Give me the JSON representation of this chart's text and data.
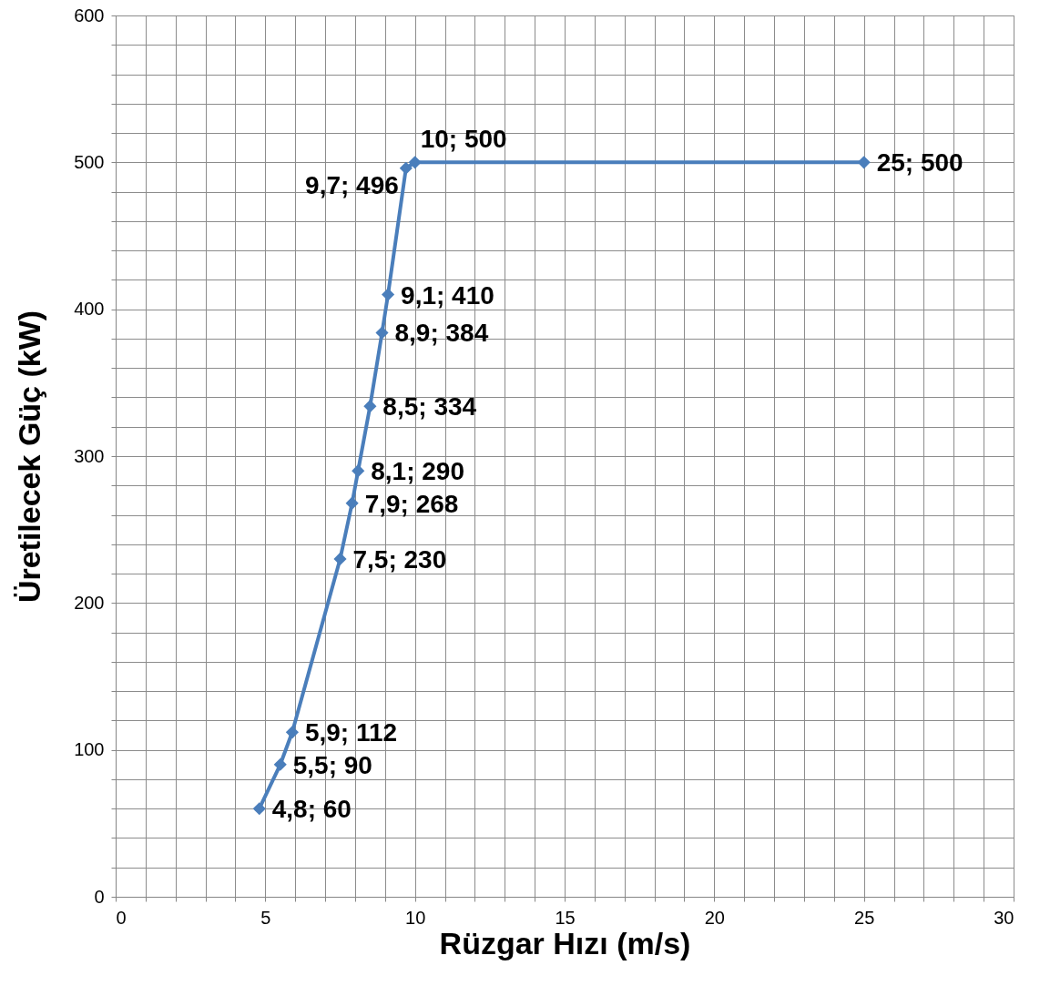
{
  "chart_data": {
    "type": "line",
    "xlabel": "Rüzgar Hızı (m/s)",
    "ylabel": "Üretilecek  Güç (kW)",
    "xlim": [
      0,
      30
    ],
    "ylim": [
      0,
      600
    ],
    "xticks": [
      0,
      {
        "value": 1,
        "label": null
      },
      {
        "value": 2,
        "label": null
      },
      {
        "value": 3,
        "label": null
      },
      {
        "value": 4,
        "label": null
      },
      5,
      {
        "value": 6,
        "label": null
      },
      {
        "value": 7,
        "label": null
      },
      {
        "value": 8,
        "label": null
      },
      {
        "value": 9,
        "label": null
      },
      10,
      {
        "value": 11,
        "label": null
      },
      {
        "value": 12,
        "label": null
      },
      {
        "value": 13,
        "label": null
      },
      {
        "value": 14,
        "label": null
      },
      15,
      {
        "value": 16,
        "label": null
      },
      {
        "value": 17,
        "label": null
      },
      {
        "value": 18,
        "label": null
      },
      {
        "value": 19,
        "label": null
      },
      20,
      {
        "value": 21,
        "label": null
      },
      {
        "value": 22,
        "label": null
      },
      {
        "value": 23,
        "label": null
      },
      {
        "value": 24,
        "label": null
      },
      25,
      {
        "value": 26,
        "label": null
      },
      {
        "value": 27,
        "label": null
      },
      {
        "value": 28,
        "label": null
      },
      {
        "value": 29,
        "label": null
      },
      30
    ],
    "yticks": [
      0,
      {
        "value": 20,
        "label": null
      },
      {
        "value": 40,
        "label": null
      },
      {
        "value": 60,
        "label": null
      },
      {
        "value": 80,
        "label": null
      },
      100,
      {
        "value": 120,
        "label": null
      },
      {
        "value": 140,
        "label": null
      },
      {
        "value": 160,
        "label": null
      },
      {
        "value": 180,
        "label": null
      },
      200,
      {
        "value": 220,
        "label": null
      },
      {
        "value": 240,
        "label": null
      },
      {
        "value": 260,
        "label": null
      },
      {
        "value": 280,
        "label": null
      },
      300,
      {
        "value": 320,
        "label": null
      },
      {
        "value": 340,
        "label": null
      },
      {
        "value": 360,
        "label": null
      },
      {
        "value": 380,
        "label": null
      },
      400,
      {
        "value": 420,
        "label": null
      },
      {
        "value": 440,
        "label": null
      },
      {
        "value": 460,
        "label": null
      },
      {
        "value": 480,
        "label": null
      },
      500,
      {
        "value": 520,
        "label": null
      },
      {
        "value": 540,
        "label": null
      },
      {
        "value": 560,
        "label": null
      },
      {
        "value": 580,
        "label": null
      },
      600
    ],
    "grid": true,
    "marker": "diamond",
    "line_style": "solid",
    "series": [
      {
        "color": "#4a7ebb",
        "x": [
          4.8,
          5.5,
          5.9,
          7.5,
          7.9,
          8.1,
          8.5,
          8.9,
          9.1,
          9.7,
          10,
          25
        ],
        "values": [
          60,
          90,
          112,
          230,
          268,
          290,
          334,
          384,
          410,
          496,
          500,
          500
        ],
        "value_labels": [
          "4,8; 60",
          "5,5; 90",
          "5,9; 112",
          "7,5; 230",
          "7,9; 268",
          "8,1; 290",
          "8,5; 334",
          "8,9; 384",
          "9,1; 410",
          "9,7; 496",
          "10; 500",
          "25; 500"
        ]
      }
    ]
  }
}
